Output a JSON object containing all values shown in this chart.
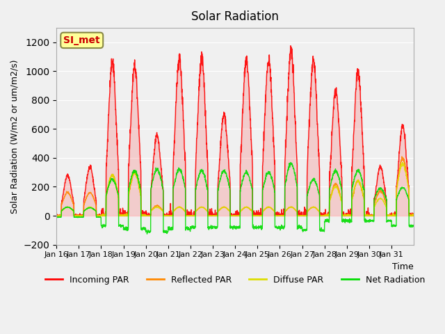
{
  "title": "Solar Radiation",
  "ylabel": "Solar Radiation (W/m2 or um/m2/s)",
  "xlabel": "Time",
  "ylim": [
    -200,
    1300
  ],
  "yticks": [
    -200,
    0,
    200,
    400,
    600,
    800,
    1000,
    1200
  ],
  "bg_color": "#f0f0f0",
  "plot_bg_color": "#f0f0f0",
  "line_colors": {
    "incoming": "#ff0000",
    "reflected": "#ff8800",
    "diffuse": "#dddd00",
    "net": "#00dd00"
  },
  "legend_labels": [
    "Incoming PAR",
    "Reflected PAR",
    "Diffuse PAR",
    "Net Radiation"
  ],
  "annotation_text": "SI_met",
  "annotation_color": "#cc0000",
  "annotation_bg": "#ffff99",
  "x_tick_labels": [
    "Jan 16",
    "Jan 17",
    "Jan 18",
    "Jan 19",
    "Jan 20",
    "Jan 21",
    "Jan 22",
    "Jan 23",
    "Jan 24",
    "Jan 25",
    "Jan 26",
    "Jan 27",
    "Jan 28",
    "Jan 29",
    "Jan 30",
    "Jan 31"
  ],
  "n_days": 16,
  "day_peaks_incoming": [
    280,
    340,
    1060,
    1040,
    560,
    1090,
    1090,
    700,
    1080,
    1080,
    1150,
    1080,
    860,
    1000,
    340,
    620
  ],
  "day_peaks_reflected": [
    160,
    160,
    280,
    300,
    70,
    60,
    60,
    60,
    60,
    60,
    60,
    60,
    220,
    240,
    170,
    400
  ],
  "day_peaks_diffuse": [
    60,
    60,
    280,
    300,
    60,
    60,
    60,
    60,
    60,
    60,
    60,
    60,
    200,
    240,
    120,
    360
  ],
  "day_peaks_net": [
    60,
    55,
    250,
    310,
    320,
    320,
    310,
    310,
    300,
    300,
    360,
    250,
    310,
    310,
    190,
    195
  ],
  "day_net_min": [
    -10,
    -10,
    -70,
    -90,
    -110,
    -90,
    -80,
    -80,
    -80,
    -80,
    -80,
    -100,
    -35,
    -35,
    -35,
    -70
  ]
}
